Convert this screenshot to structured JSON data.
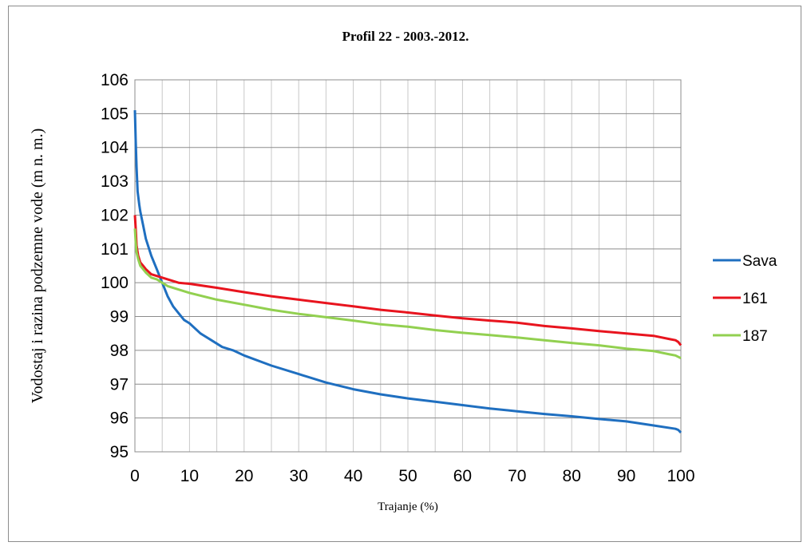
{
  "chart_data": {
    "type": "line",
    "title": "Profil 22 - 2003.-2012.",
    "xlabel": "Trajanje (%)",
    "ylabel": "Vodostaj i razina podzemne vode (m n. m.)",
    "xlim": [
      0,
      100
    ],
    "ylim": [
      95,
      106
    ],
    "xticks": [
      "0",
      "10",
      "20",
      "30",
      "40",
      "50",
      "60",
      "70",
      "80",
      "90",
      "100"
    ],
    "yticks": [
      "95",
      "96",
      "97",
      "98",
      "99",
      "100",
      "101",
      "102",
      "103",
      "104",
      "105",
      "106"
    ],
    "grid": true,
    "legend_position": "right",
    "series": [
      {
        "name": "Sava",
        "color": "#1f6fc0",
        "x": [
          0,
          0.15,
          0.3,
          0.5,
          0.8,
          1,
          1.5,
          2,
          3,
          4,
          5,
          6,
          7,
          8,
          9,
          10,
          12,
          14,
          16,
          18,
          20,
          25,
          30,
          35,
          40,
          45,
          50,
          55,
          60,
          65,
          70,
          75,
          80,
          85,
          90,
          95,
          99,
          99.5,
          100
        ],
        "y": [
          105.1,
          104.2,
          103.4,
          102.7,
          102.3,
          102.1,
          101.7,
          101.3,
          100.8,
          100.4,
          100.0,
          99.6,
          99.3,
          99.1,
          98.9,
          98.8,
          98.5,
          98.3,
          98.1,
          98.0,
          97.85,
          97.55,
          97.3,
          97.05,
          96.85,
          96.7,
          96.58,
          96.48,
          96.38,
          96.28,
          96.2,
          96.12,
          96.05,
          95.97,
          95.9,
          95.78,
          95.68,
          95.65,
          95.57
        ]
      },
      {
        "name": "161",
        "color": "#e8141e",
        "x": [
          0,
          0.15,
          0.3,
          0.6,
          1,
          1.5,
          2,
          3,
          4,
          5,
          6,
          8,
          10,
          15,
          20,
          25,
          30,
          35,
          40,
          45,
          50,
          55,
          60,
          65,
          70,
          75,
          80,
          85,
          90,
          95,
          98,
          99,
          99.5,
          100
        ],
        "y": [
          102.0,
          101.6,
          101.1,
          100.8,
          100.6,
          100.5,
          100.4,
          100.25,
          100.2,
          100.15,
          100.1,
          100.0,
          99.97,
          99.85,
          99.72,
          99.6,
          99.5,
          99.4,
          99.3,
          99.2,
          99.12,
          99.03,
          98.95,
          98.88,
          98.82,
          98.72,
          98.65,
          98.57,
          98.5,
          98.43,
          98.33,
          98.3,
          98.25,
          98.15
        ]
      },
      {
        "name": "187",
        "color": "#92d050",
        "x": [
          0,
          0.15,
          0.3,
          0.6,
          1,
          1.5,
          2,
          3,
          4,
          5,
          6,
          8,
          10,
          15,
          20,
          25,
          30,
          35,
          40,
          45,
          50,
          55,
          60,
          65,
          70,
          75,
          80,
          85,
          90,
          95,
          98,
          99,
          100
        ],
        "y": [
          101.6,
          101.2,
          100.9,
          100.7,
          100.5,
          100.4,
          100.3,
          100.15,
          100.1,
          100.0,
          99.9,
          99.8,
          99.7,
          99.5,
          99.35,
          99.2,
          99.08,
          98.98,
          98.88,
          98.77,
          98.7,
          98.6,
          98.52,
          98.45,
          98.38,
          98.3,
          98.22,
          98.15,
          98.05,
          97.98,
          97.88,
          97.85,
          97.77
        ]
      }
    ]
  }
}
